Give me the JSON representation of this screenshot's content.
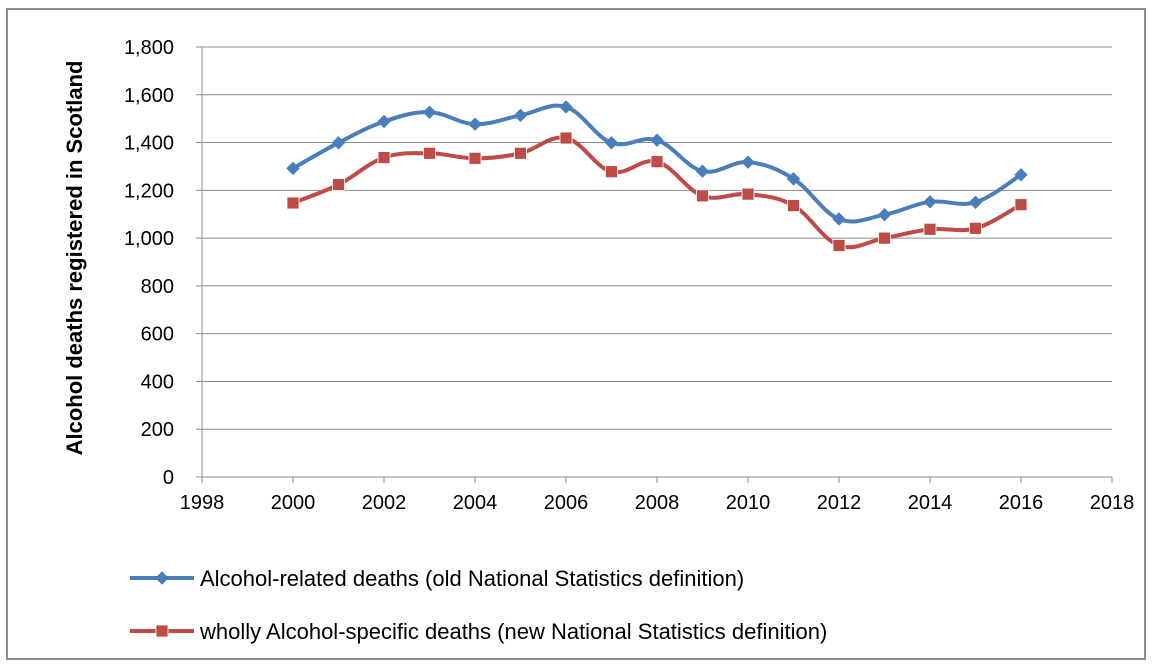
{
  "chart_data": {
    "type": "line",
    "title": "",
    "xlabel": "",
    "ylabel": "Alcohol deaths registered in Scotland",
    "xlim": [
      1998,
      2018
    ],
    "ylim": [
      0,
      1800
    ],
    "x_ticks": [
      "1998",
      "2000",
      "2002",
      "2004",
      "2006",
      "2008",
      "2010",
      "2012",
      "2014",
      "2016",
      "2018"
    ],
    "y_ticks": [
      "0",
      "200",
      "400",
      "600",
      "800",
      "1,000",
      "1,200",
      "1,400",
      "1,600",
      "1,800"
    ],
    "grid": "horizontal",
    "legend_position": "bottom",
    "x": [
      2000,
      2001,
      2002,
      2003,
      2004,
      2005,
      2006,
      2007,
      2008,
      2009,
      2010,
      2011,
      2012,
      2013,
      2014,
      2015,
      2016
    ],
    "series": [
      {
        "name": "Alcohol-related deaths (old National Statistics definition)",
        "color": "#4a7ebb",
        "marker": "diamond",
        "values": [
          1292,
          1399,
          1488,
          1527,
          1477,
          1514,
          1549,
          1399,
          1410,
          1280,
          1318,
          1248,
          1080,
          1098,
          1152,
          1150,
          1265
        ]
      },
      {
        "name": "wholly Alcohol-specific deaths (new National Statistics definition)",
        "color": "#be4b48",
        "marker": "square",
        "values": [
          1147,
          1224,
          1337,
          1355,
          1334,
          1355,
          1419,
          1278,
          1320,
          1177,
          1184,
          1136,
          969,
          1000,
          1037,
          1041,
          1140
        ]
      }
    ]
  }
}
